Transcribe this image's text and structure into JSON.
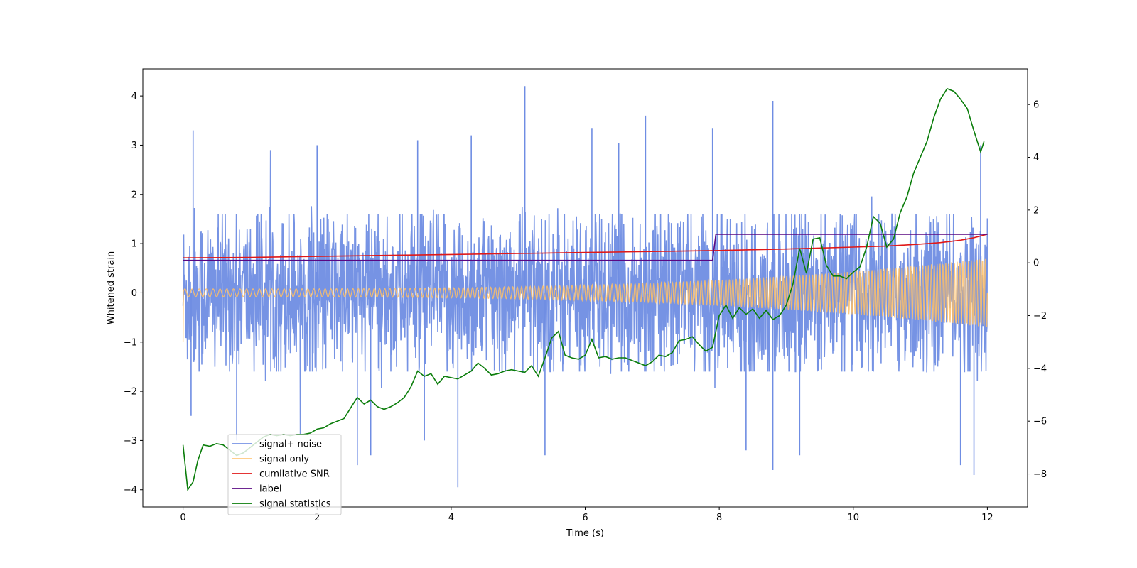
{
  "chart_data": {
    "type": "line",
    "title": "",
    "xlabel": "Time (s)",
    "ylabel": "Whitened strain",
    "y2label": "",
    "xlim": [
      -0.6,
      12.6
    ],
    "ylim": [
      -4.35,
      4.55
    ],
    "y2lim": [
      -9.25,
      7.35
    ],
    "xticks": [
      0,
      2,
      4,
      6,
      8,
      10,
      12
    ],
    "yticks": [
      -4,
      -3,
      -2,
      -1,
      0,
      1,
      2,
      3,
      4
    ],
    "y2ticks": [
      -8,
      -6,
      -4,
      -2,
      0,
      2,
      4,
      6
    ],
    "legend_position": "lower-left",
    "noise_spikes": [
      {
        "t": 0.15,
        "v": 3.3
      },
      {
        "t": 0.12,
        "v": -2.5
      },
      {
        "t": 0.8,
        "v": -3.0
      },
      {
        "t": 2.0,
        "v": 3.0
      },
      {
        "t": 2.6,
        "v": -3.5
      },
      {
        "t": 2.8,
        "v": -3.3
      },
      {
        "t": 3.5,
        "v": 3.1
      },
      {
        "t": 3.6,
        "v": -3.0
      },
      {
        "t": 4.1,
        "v": -3.95
      },
      {
        "t": 4.3,
        "v": 3.2
      },
      {
        "t": 5.1,
        "v": 4.2
      },
      {
        "t": 5.4,
        "v": -3.3
      },
      {
        "t": 6.1,
        "v": 3.35
      },
      {
        "t": 6.5,
        "v": 3.05
      },
      {
        "t": 6.9,
        "v": 3.6
      },
      {
        "t": 7.9,
        "v": 3.35
      },
      {
        "t": 8.4,
        "v": -3.2
      },
      {
        "t": 8.8,
        "v": 3.9
      },
      {
        "t": 8.8,
        "v": -3.6
      },
      {
        "t": 9.2,
        "v": -3.3
      },
      {
        "t": 11.8,
        "v": -3.7
      },
      {
        "t": 11.6,
        "v": -3.5
      },
      {
        "t": 11.9,
        "v": 3.0
      }
    ],
    "series": [
      {
        "name": "signal+ noise",
        "color": "#6f8de3",
        "axis": "left",
        "t": [
          0,
          12
        ],
        "envelope_typical": 1.6,
        "envelope_peak": 2.9
      },
      {
        "name": "signal only",
        "color": "#ffbf66",
        "axis": "left",
        "t": [
          0,
          12
        ],
        "cycles": 200,
        "amp_start": 0.08,
        "amp_end": 0.7,
        "start_value": -1.0
      },
      {
        "name": "cumilative SNR",
        "color": "#e01818",
        "axis": "left",
        "x": [
          0,
          1,
          2,
          3,
          4,
          5,
          6,
          7,
          8,
          9,
          10,
          10.5,
          11,
          11.3,
          11.6,
          11.8,
          12
        ],
        "y": [
          0.71,
          0.72,
          0.74,
          0.76,
          0.78,
          0.8,
          0.82,
          0.84,
          0.86,
          0.89,
          0.93,
          0.95,
          0.99,
          1.02,
          1.07,
          1.12,
          1.19
        ]
      },
      {
        "name": "label",
        "color": "#5a0882",
        "axis": "left",
        "x": [
          0,
          7.9,
          7.95,
          12
        ],
        "y": [
          0.66,
          0.66,
          1.19,
          1.19
        ]
      },
      {
        "name": "signal statistics",
        "color": "#0a7d0a",
        "axis": "right",
        "x": [
          0,
          0.07,
          0.15,
          0.22,
          0.3,
          0.4,
          0.5,
          0.6,
          0.7,
          0.8,
          0.9,
          1.0,
          1.1,
          1.2,
          1.3,
          1.4,
          1.5,
          1.6,
          1.7,
          1.8,
          1.9,
          2.0,
          2.1,
          2.2,
          2.3,
          2.4,
          2.5,
          2.6,
          2.7,
          2.8,
          2.9,
          3.0,
          3.1,
          3.2,
          3.3,
          3.4,
          3.5,
          3.6,
          3.7,
          3.8,
          3.9,
          4.0,
          4.1,
          4.2,
          4.3,
          4.4,
          4.5,
          4.6,
          4.7,
          4.8,
          4.9,
          5.0,
          5.1,
          5.2,
          5.3,
          5.4,
          5.5,
          5.6,
          5.7,
          5.8,
          5.9,
          6.0,
          6.1,
          6.2,
          6.3,
          6.4,
          6.5,
          6.6,
          6.7,
          6.8,
          6.9,
          7.0,
          7.1,
          7.2,
          7.3,
          7.4,
          7.5,
          7.6,
          7.7,
          7.8,
          7.9,
          8.0,
          8.1,
          8.2,
          8.3,
          8.4,
          8.5,
          8.6,
          8.7,
          8.8,
          8.9,
          9.0,
          9.1,
          9.2,
          9.3,
          9.4,
          9.5,
          9.6,
          9.7,
          9.8,
          9.9,
          10.0,
          10.1,
          10.2,
          10.3,
          10.4,
          10.5,
          10.6,
          10.7,
          10.8,
          10.9,
          11.0,
          11.1,
          11.2,
          11.3,
          11.4,
          11.5,
          11.6,
          11.7,
          11.8,
          11.9,
          11.95
        ],
        "y": [
          -6.9,
          -8.6,
          -8.3,
          -7.5,
          -6.9,
          -6.95,
          -6.85,
          -6.9,
          -7.1,
          -7.3,
          -7.2,
          -7.0,
          -6.8,
          -6.6,
          -6.5,
          -6.55,
          -6.5,
          -6.55,
          -6.5,
          -6.5,
          -6.45,
          -6.3,
          -6.25,
          -6.1,
          -6.0,
          -5.9,
          -5.5,
          -5.1,
          -5.35,
          -5.2,
          -5.45,
          -5.55,
          -5.45,
          -5.3,
          -5.1,
          -4.7,
          -4.1,
          -4.3,
          -4.2,
          -4.6,
          -4.3,
          -4.35,
          -4.4,
          -4.25,
          -4.1,
          -3.8,
          -4.0,
          -4.25,
          -4.2,
          -4.1,
          -4.05,
          -4.1,
          -4.15,
          -3.9,
          -4.3,
          -3.6,
          -2.85,
          -2.6,
          -3.5,
          -3.6,
          -3.65,
          -3.5,
          -2.9,
          -3.6,
          -3.55,
          -3.65,
          -3.6,
          -3.6,
          -3.7,
          -3.8,
          -3.9,
          -3.75,
          -3.5,
          -3.55,
          -3.4,
          -2.95,
          -2.9,
          -2.8,
          -3.1,
          -3.35,
          -3.2,
          -2.0,
          -1.6,
          -2.1,
          -1.7,
          -1.95,
          -1.75,
          -2.1,
          -1.8,
          -2.15,
          -2.0,
          -1.6,
          -0.8,
          0.55,
          -0.4,
          0.9,
          0.95,
          -0.1,
          -0.5,
          -0.5,
          -0.6,
          -0.35,
          -0.15,
          0.6,
          1.75,
          1.5,
          0.6,
          0.9,
          1.9,
          2.5,
          3.4,
          4.0,
          4.6,
          5.5,
          6.2,
          6.6,
          6.5,
          6.2,
          5.85,
          5.0,
          4.2,
          4.6
        ]
      }
    ]
  }
}
